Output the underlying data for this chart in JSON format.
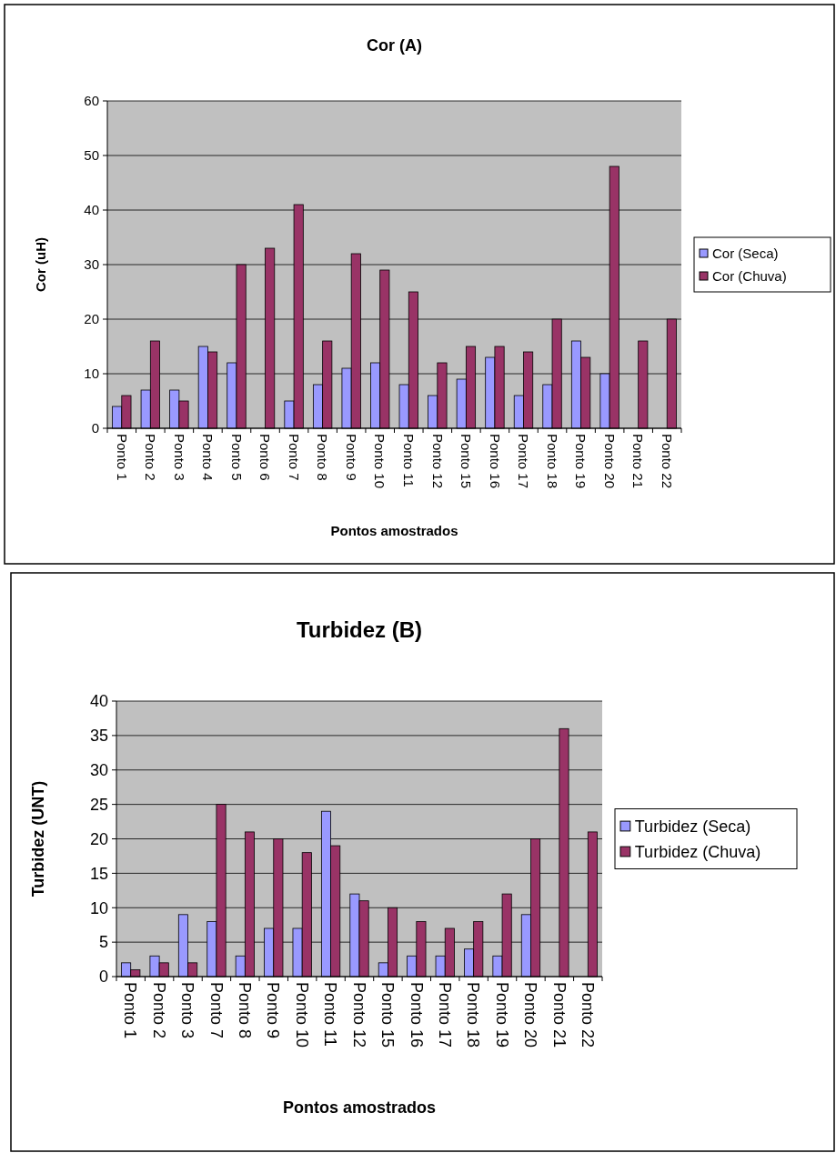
{
  "chart_data": [
    {
      "type": "bar",
      "title": "Cor (A)",
      "xlabel": "Pontos amostrados",
      "ylabel": "Cor (uH)",
      "categories": [
        "Ponto 1",
        "Ponto 2",
        "Ponto 3",
        "Ponto 4",
        "Ponto 5",
        "Ponto 6",
        "Ponto 7",
        "Ponto 8",
        "Ponto 9",
        "Ponto 10",
        "Ponto 11",
        "Ponto 12",
        "Ponto 15",
        "Ponto 16",
        "Ponto 17",
        "Ponto 18",
        "Ponto 19",
        "Ponto 20",
        "Ponto 21",
        "Ponto 22"
      ],
      "series": [
        {
          "name": "Cor (Seca)",
          "color": "#9999ff",
          "values": [
            4,
            7,
            7,
            15,
            12,
            null,
            5,
            8,
            11,
            12,
            8,
            6,
            9,
            13,
            6,
            8,
            16,
            10,
            null,
            null
          ]
        },
        {
          "name": "Cor (Chuva)",
          "color": "#993366",
          "values": [
            6,
            16,
            5,
            14,
            30,
            33,
            41,
            16,
            32,
            29,
            25,
            12,
            15,
            15,
            14,
            20,
            13,
            48,
            16,
            20
          ]
        }
      ],
      "ylim": [
        0,
        60
      ],
      "yticks": [
        0,
        10,
        20,
        30,
        40,
        50,
        60
      ],
      "grid": "y",
      "legend": "right"
    },
    {
      "type": "bar",
      "title": "Turbidez (B)",
      "xlabel": "Pontos amostrados",
      "ylabel": "Turbidez (UNT)",
      "categories": [
        "Ponto 1",
        "Ponto 2",
        "Ponto 3",
        "Ponto 7",
        "Ponto 8",
        "Ponto 9",
        "Ponto 10",
        "Ponto 11",
        "Ponto 12",
        "Ponto 15",
        "Ponto 16",
        "Ponto 17",
        "Ponto 18",
        "Ponto 19",
        "Ponto 20",
        "Ponto 21",
        "Ponto 22"
      ],
      "series": [
        {
          "name": "Turbidez (Seca)",
          "color": "#9999ff",
          "values": [
            2,
            3,
            9,
            8,
            3,
            7,
            7,
            24,
            12,
            2,
            3,
            3,
            4,
            3,
            9,
            null,
            null
          ]
        },
        {
          "name": "Turbidez (Chuva)",
          "color": "#993366",
          "values": [
            1,
            2,
            2,
            25,
            21,
            20,
            18,
            19,
            11,
            10,
            8,
            7,
            8,
            12,
            20,
            36,
            21
          ]
        }
      ],
      "ylim": [
        0,
        40
      ],
      "yticks": [
        0,
        5,
        10,
        15,
        20,
        25,
        30,
        35,
        40
      ],
      "grid": "y",
      "legend": "right"
    }
  ]
}
